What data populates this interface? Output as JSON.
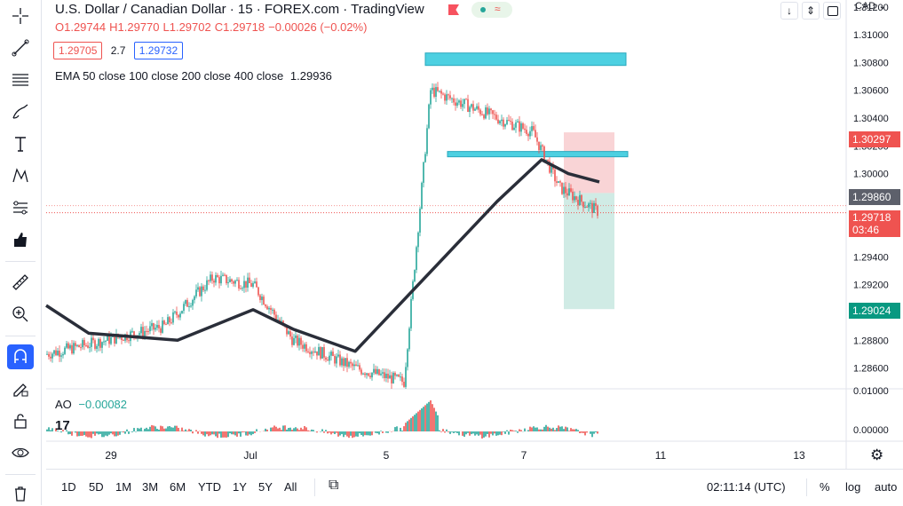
{
  "header": {
    "title": "U.S. Dollar / Canadian Dollar · 15 · FOREX.com · TradingView",
    "currency": "CAD",
    "ohlc": {
      "o": "O1.29744",
      "h": "H1.29770",
      "l": "L1.29702",
      "c": "C1.29718",
      "chg": "−0.00026 (−0.02%)"
    },
    "bid": "1.29705",
    "spread": "2.7",
    "ask": "1.29732",
    "ema_label": "EMA 50 close 100 close 200 close 400 close",
    "ema_value": "1.29936"
  },
  "price_axis": {
    "ticks": [
      "1.31200",
      "1.31000",
      "1.30800",
      "1.30600",
      "1.30400",
      "1.30200",
      "1.30000",
      "1.29800",
      "1.29600",
      "1.29400",
      "1.29200",
      "1.29000",
      "1.28800",
      "1.28600"
    ],
    "tags": {
      "stop": "1.30297",
      "entry": "1.29860",
      "current": "1.29718",
      "countdown": "03:46",
      "target": "1.29024"
    }
  },
  "ao": {
    "label": "AO",
    "value": "−0.00082",
    "ticks": [
      "0.01000",
      "0.00000"
    ]
  },
  "time_axis": {
    "labels": [
      "29",
      "Jul",
      "5",
      "7",
      "11",
      "13"
    ]
  },
  "bottom": {
    "timeframes": [
      "1D",
      "5D",
      "1M",
      "3M",
      "6M",
      "YTD",
      "1Y",
      "5Y",
      "All"
    ],
    "clock": "02:11:14 (UTC)",
    "percent": "%",
    "log": "log",
    "auto": "auto"
  },
  "colors": {
    "up": "#26a69a",
    "down": "#ef5350",
    "ema": "#2a2e39",
    "zone": "#4dd0e1",
    "stop_zone": "#f8c9cc",
    "target_zone": "#c8e8e0",
    "accent": "#2962ff"
  },
  "chart_data": {
    "type": "candlestick",
    "symbol": "USDCAD",
    "interval": "15",
    "ylim": [
      1.2845,
      1.3125
    ],
    "path_points": [
      {
        "x": "Jun 28",
        "y": 1.287
      },
      {
        "x": "Jun 29",
        "y": 1.288
      },
      {
        "x": "Jun 30",
        "y": 1.289
      },
      {
        "x": "Jul 1",
        "y": 1.2925
      },
      {
        "x": "Jul 2",
        "y": 1.292
      },
      {
        "x": "Jul 3",
        "y": 1.288
      },
      {
        "x": "Jul 4",
        "y": 1.286
      },
      {
        "x": "Jul 5",
        "y": 1.285
      },
      {
        "x": "Jul 5 late",
        "y": 1.306
      },
      {
        "x": "Jul 6",
        "y": 1.304
      },
      {
        "x": "Jul 7",
        "y": 1.303
      },
      {
        "x": "Jul 8",
        "y": 1.299
      },
      {
        "x": "Jul 8 late",
        "y": 1.2972
      }
    ],
    "ema": [
      {
        "x": "Jun 28",
        "y": 1.2905
      },
      {
        "x": "Jun 29",
        "y": 1.2885
      },
      {
        "x": "Jul 1",
        "y": 1.288
      },
      {
        "x": "Jul 2",
        "y": 1.2902
      },
      {
        "x": "Jul 4",
        "y": 1.2888
      },
      {
        "x": "Jul 5",
        "y": 1.2872
      },
      {
        "x": "Jul 6",
        "y": 1.298
      },
      {
        "x": "Jul 7",
        "y": 1.301
      },
      {
        "x": "Jul 8",
        "y": 1.3
      },
      {
        "x": "Jul 8 late",
        "y": 1.2994
      }
    ],
    "supply_zone": [
      1.3076,
      1.3083
    ],
    "support_line": 1.3014,
    "position": {
      "stop": 1.30297,
      "entry": 1.2986,
      "target": 1.29024
    },
    "current_price": 1.29718
  }
}
